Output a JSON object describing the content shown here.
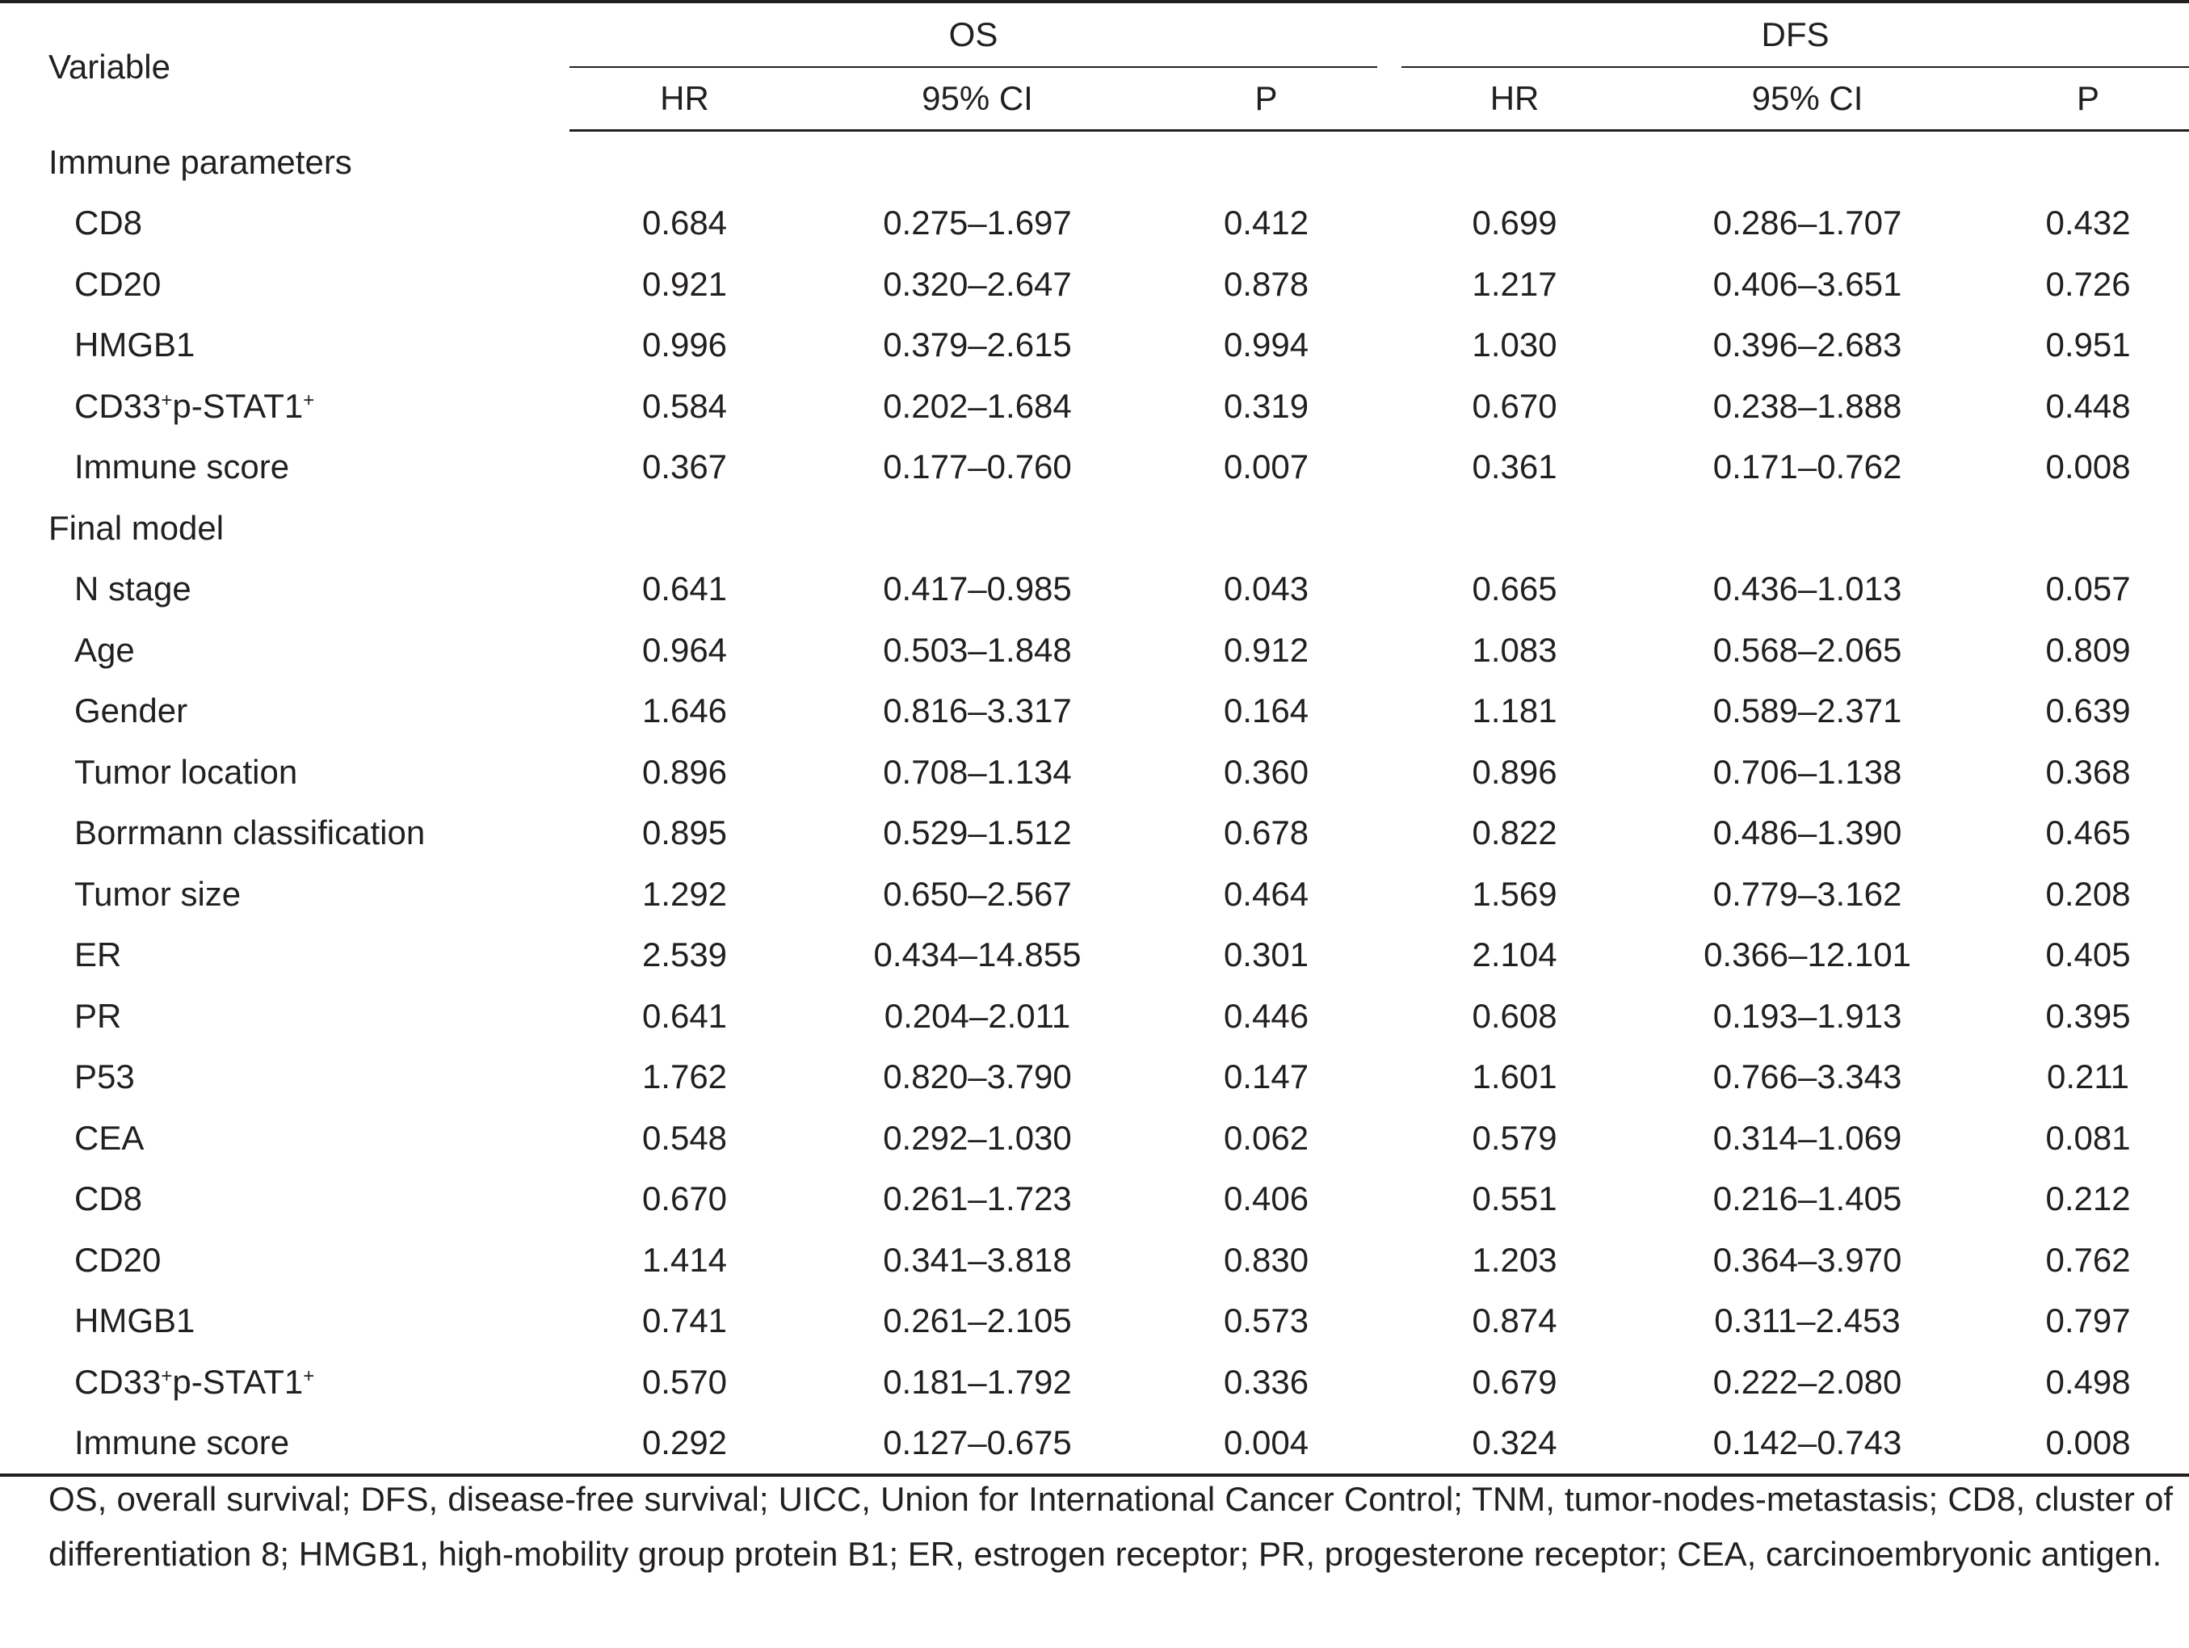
{
  "header": {
    "variable": "Variable",
    "group_os": "OS",
    "group_dfs": "DFS",
    "columns": [
      "HR",
      "95% CI",
      "P",
      "HR",
      "95% CI",
      "P"
    ]
  },
  "sections": [
    {
      "title": "Immune parameters",
      "rows": [
        {
          "label": "CD8",
          "values": [
            "0.684",
            "0.275–1.697",
            "0.412",
            "0.699",
            "0.286–1.707",
            "0.432"
          ]
        },
        {
          "label": "CD20",
          "values": [
            "0.921",
            "0.320–2.647",
            "0.878",
            "1.217",
            "0.406–3.651",
            "0.726"
          ]
        },
        {
          "label": "HMGB1",
          "values": [
            "0.996",
            "0.379–2.615",
            "0.994",
            "1.030",
            "0.396–2.683",
            "0.951"
          ]
        },
        {
          "label": "CD33+p-STAT1+",
          "label_parts": [
            "CD33",
            "+",
            "p-STAT1",
            "+"
          ],
          "values": [
            "0.584",
            "0.202–1.684",
            "0.319",
            "0.670",
            "0.238–1.888",
            "0.448"
          ]
        },
        {
          "label": "Immune score",
          "values": [
            "0.367",
            "0.177–0.760",
            "0.007",
            "0.361",
            "0.171–0.762",
            "0.008"
          ]
        }
      ]
    },
    {
      "title": "Final model",
      "rows": [
        {
          "label": "N stage",
          "values": [
            "0.641",
            "0.417–0.985",
            "0.043",
            "0.665",
            "0.436–1.013",
            "0.057"
          ]
        },
        {
          "label": "Age",
          "values": [
            "0.964",
            "0.503–1.848",
            "0.912",
            "1.083",
            "0.568–2.065",
            "0.809"
          ]
        },
        {
          "label": "Gender",
          "values": [
            "1.646",
            "0.816–3.317",
            "0.164",
            "1.181",
            "0.589–2.371",
            "0.639"
          ]
        },
        {
          "label": "Tumor location",
          "values": [
            "0.896",
            "0.708–1.134",
            "0.360",
            "0.896",
            "0.706–1.138",
            "0.368"
          ]
        },
        {
          "label": "Borrmann classification",
          "values": [
            "0.895",
            "0.529–1.512",
            "0.678",
            "0.822",
            "0.486–1.390",
            "0.465"
          ]
        },
        {
          "label": "Tumor size",
          "values": [
            "1.292",
            "0.650–2.567",
            "0.464",
            "1.569",
            "0.779–3.162",
            "0.208"
          ]
        },
        {
          "label": "ER",
          "values": [
            "2.539",
            "0.434–14.855",
            "0.301",
            "2.104",
            "0.366–12.101",
            "0.405"
          ]
        },
        {
          "label": "PR",
          "values": [
            "0.641",
            "0.204–2.011",
            "0.446",
            "0.608",
            "0.193–1.913",
            "0.395"
          ]
        },
        {
          "label": "P53",
          "values": [
            "1.762",
            "0.820–3.790",
            "0.147",
            "1.601",
            "0.766–3.343",
            "0.211"
          ]
        },
        {
          "label": "CEA",
          "values": [
            "0.548",
            "0.292–1.030",
            "0.062",
            "0.579",
            "0.314–1.069",
            "0.081"
          ]
        },
        {
          "label": "CD8",
          "values": [
            "0.670",
            "0.261–1.723",
            "0.406",
            "0.551",
            "0.216–1.405",
            "0.212"
          ]
        },
        {
          "label": "CD20",
          "values": [
            "1.414",
            "0.341–3.818",
            "0.830",
            "1.203",
            "0.364–3.970",
            "0.762"
          ]
        },
        {
          "label": "HMGB1",
          "values": [
            "0.741",
            "0.261–2.105",
            "0.573",
            "0.874",
            "0.311–2.453",
            "0.797"
          ]
        },
        {
          "label": "CD33+p-STAT1+",
          "label_parts": [
            "CD33",
            "+",
            "p-STAT1",
            "+"
          ],
          "values": [
            "0.570",
            "0.181–1.792",
            "0.336",
            "0.679",
            "0.222–2.080",
            "0.498"
          ]
        },
        {
          "label": "Immune score",
          "values": [
            "0.292",
            "0.127–0.675",
            "0.004",
            "0.324",
            "0.142–0.743",
            "0.008"
          ]
        }
      ]
    }
  ],
  "footnote": "OS, overall survival; DFS, disease-free survival; UICC, Union for International Cancer Control; TNM, tumor-nodes-metastasis; CD8, cluster of differentiation 8; HMGB1, high-mobility group protein B1; ER, estrogen receptor; PR, progesterone receptor; CEA, carcinoembryonic antigen."
}
